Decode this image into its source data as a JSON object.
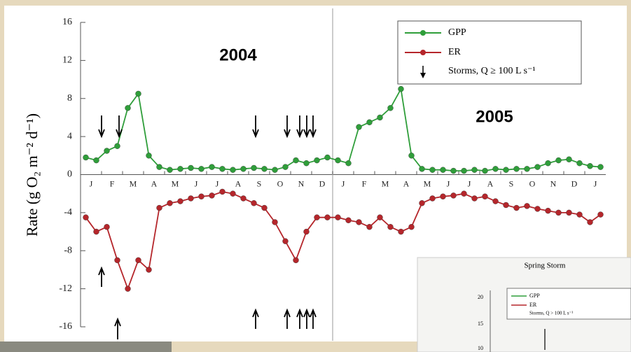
{
  "chart_data": {
    "type": "line",
    "ylabel": "Rate (g O₂ m⁻² d⁻¹)",
    "annotations": [
      "2004",
      "2005"
    ],
    "storm_label": "Storms, Q ≥ 100 L s⁻¹",
    "legend": "upper right",
    "categories": [
      "J",
      null,
      "F",
      null,
      "M",
      null,
      "A",
      null,
      "M",
      null,
      "J",
      null,
      "J",
      null,
      "A",
      null,
      "S",
      null,
      "O",
      null,
      "N",
      null,
      "D",
      null,
      "J",
      null,
      "F",
      null,
      "M",
      null,
      "A",
      null,
      "M",
      null,
      "J",
      null,
      "J",
      null,
      "A",
      null,
      "S",
      null,
      "O",
      null,
      "N",
      null,
      "D",
      null,
      "J",
      null
    ],
    "series": [
      {
        "name": "GPP",
        "color": "#2f9e3a",
        "values": [
          1.8,
          1.5,
          2.5,
          3,
          7,
          8.5,
          2,
          0.8,
          0.5,
          0.6,
          0.7,
          0.6,
          0.8,
          0.6,
          0.5,
          0.6,
          0.7,
          0.6,
          0.5,
          0.8,
          1.5,
          1.2,
          1.5,
          1.8,
          1.5,
          1.2,
          5,
          5.5,
          6,
          7,
          9,
          2,
          0.6,
          0.5,
          0.5,
          0.4,
          0.4,
          0.5,
          0.4,
          0.6,
          0.5,
          0.6,
          0.6,
          0.8,
          1.2,
          1.5,
          1.6,
          1.2,
          0.9,
          0.8
        ]
      },
      {
        "name": "ER",
        "color": "#b5262b",
        "values": [
          -4.5,
          -6,
          -5.5,
          -9,
          -12,
          -9,
          -10,
          -3.5,
          -3,
          -2.8,
          -2.5,
          -2.3,
          -2.2,
          -1.8,
          -2,
          -2.5,
          -3,
          -3.5,
          -5,
          -7,
          -9,
          -6,
          -4.5,
          -4.5,
          -4.5,
          -4.8,
          -5,
          -5.5,
          -4.5,
          -5.5,
          -6,
          -5.5,
          -3,
          -2.5,
          -2.3,
          -2.2,
          -2,
          -2.5,
          -2.3,
          -2.8,
          -3.2,
          -3.5,
          -3.3,
          -3.6,
          -3.8,
          -4,
          -4,
          -4.2,
          -5,
          -4.2
        ]
      }
    ],
    "ylim": [
      -16,
      16
    ],
    "yticks": [
      -16,
      -12,
      -8,
      -4,
      0,
      4,
      8,
      12,
      16
    ]
  },
  "inset": {
    "title": "Spring Storm",
    "legend": [
      "GPP",
      "ER",
      "Storms, Q > 100 L s⁻¹"
    ],
    "yticks": [
      "20",
      "15",
      "10"
    ]
  }
}
